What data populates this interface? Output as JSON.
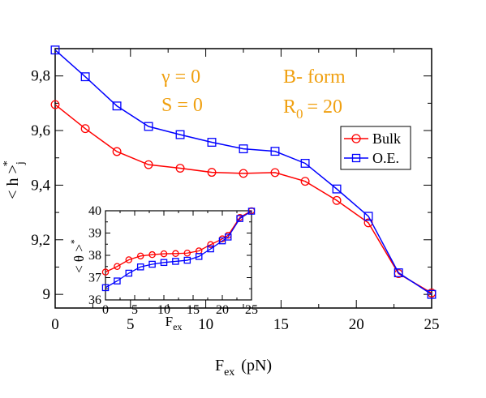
{
  "chart_data": [
    {
      "type": "line",
      "x_label": "F",
      "x_label_sub": "ex",
      "x_label_unit": "(pN)",
      "y_label": "< h >",
      "y_label_sub": "j",
      "y_label_sup": "*",
      "xlim": [
        0,
        25
      ],
      "ylim": [
        8.95,
        9.9
      ],
      "x_ticks": [
        0,
        5,
        10,
        15,
        20,
        25
      ],
      "x_tick_labels": [
        "0",
        "5",
        "10",
        "15",
        "20",
        "25"
      ],
      "y_ticks": [
        9.0,
        9.2,
        9.4,
        9.6,
        9.8
      ],
      "y_tick_labels": [
        "9",
        "9,2",
        "9,4",
        "9,6",
        "9,8"
      ],
      "grid": false,
      "legend_position": "right",
      "annotations": {
        "gamma": "γ = 0",
        "s": "S = 0",
        "form": "B- form",
        "r0_main": "R",
        "r0_sub": "0",
        "r0_value": "= 20"
      },
      "series": [
        {
          "name": "Bulk",
          "color": "#ff0000",
          "marker": "circle",
          "x": [
            0,
            2,
            4.1,
            6.2,
            8.3,
            10.4,
            12.5,
            14.6,
            16.6,
            18.7,
            20.8,
            22.8,
            25
          ],
          "y": [
            9.695,
            9.607,
            9.523,
            9.475,
            9.462,
            9.447,
            9.443,
            9.446,
            9.414,
            9.344,
            9.262,
            9.076,
            9.005
          ]
        },
        {
          "name": "O.E.",
          "color": "#0000ff",
          "marker": "square",
          "x": [
            0,
            2,
            4.1,
            6.2,
            8.3,
            10.4,
            12.5,
            14.6,
            16.6,
            18.7,
            20.8,
            22.8,
            25
          ],
          "y": [
            9.895,
            9.797,
            9.69,
            9.615,
            9.585,
            9.557,
            9.533,
            9.524,
            9.48,
            9.386,
            9.286,
            9.079,
            9.0
          ]
        }
      ]
    },
    {
      "type": "line",
      "x_label": "F",
      "x_label_sub": "ex",
      "y_label": "< θ >",
      "y_label_sub": "*",
      "xlim": [
        0,
        25
      ],
      "ylim": [
        36,
        40
      ],
      "x_ticks": [
        0,
        5,
        10,
        15,
        20,
        25
      ],
      "x_tick_labels": [
        "0",
        "5",
        "10",
        "15",
        "20",
        "25"
      ],
      "y_ticks": [
        36,
        37,
        38,
        39,
        40
      ],
      "y_tick_labels": [
        "36",
        "37",
        "38",
        "39",
        "40"
      ],
      "grid": false,
      "series": [
        {
          "name": "Bulk",
          "color": "#ff0000",
          "marker": "circle",
          "x": [
            0,
            2,
            4,
            6,
            8,
            10,
            12,
            14,
            16,
            18,
            20,
            21,
            23,
            25
          ],
          "y": [
            37.25,
            37.5,
            37.8,
            37.97,
            38.03,
            38.07,
            38.08,
            38.1,
            38.2,
            38.48,
            38.74,
            38.9,
            39.7,
            40.0
          ]
        },
        {
          "name": "O.E.",
          "color": "#0000ff",
          "marker": "square",
          "x": [
            0,
            2,
            4,
            6,
            8,
            10,
            12,
            14,
            16,
            18,
            20,
            21,
            23,
            25
          ],
          "y": [
            36.55,
            36.85,
            37.2,
            37.48,
            37.6,
            37.68,
            37.73,
            37.78,
            37.95,
            38.29,
            38.65,
            38.82,
            39.65,
            39.98
          ]
        }
      ]
    }
  ]
}
